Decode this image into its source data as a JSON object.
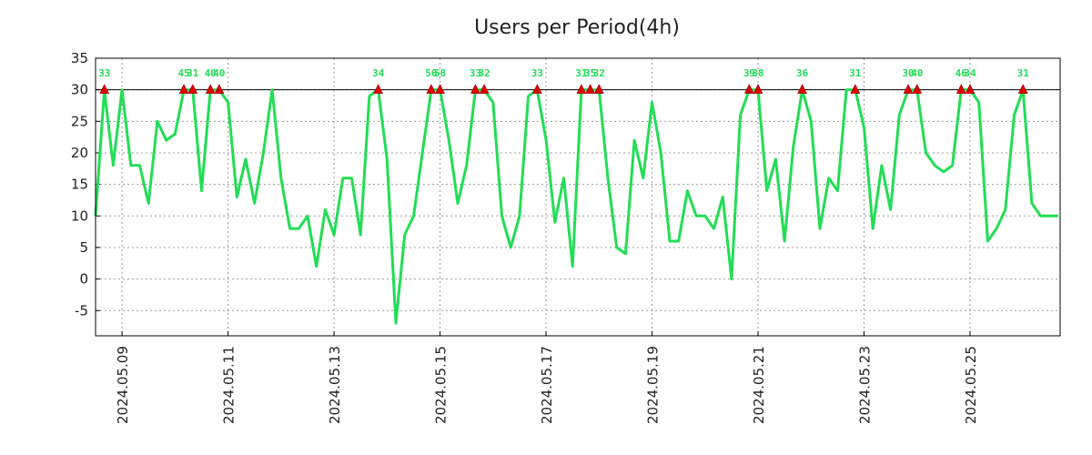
{
  "chart_data": {
    "type": "line",
    "title": "Users per Period(4h)",
    "xlabel": "",
    "ylabel": "",
    "ylim": [
      -9,
      35
    ],
    "yticks": [
      -5,
      0,
      5,
      10,
      15,
      20,
      25,
      30,
      35
    ],
    "x_start": "2024.05.08 12:00",
    "x_step_hours": 4,
    "xlim_days": [
      0,
      18.2
    ],
    "xtick_labels": [
      "2024.05.09",
      "2024.05.11",
      "2024.05.13",
      "2024.05.15",
      "2024.05.17",
      "2024.05.19",
      "2024.05.21",
      "2024.05.23",
      "2024.05.25"
    ],
    "xtick_days": [
      0.5,
      2.5,
      4.5,
      6.5,
      8.5,
      10.5,
      12.5,
      14.5,
      16.5
    ],
    "threshold": 30,
    "grid": true,
    "series": [
      {
        "name": "users",
        "color": "#22dd55",
        "values": [
          10,
          30,
          18,
          30,
          18,
          18,
          12,
          25,
          22,
          23,
          30,
          30,
          14,
          30,
          30,
          28,
          13,
          19,
          12,
          20,
          30,
          16,
          8,
          8,
          10,
          2,
          11,
          7,
          16,
          16,
          7,
          29,
          30,
          19,
          -7,
          7,
          10,
          20,
          30,
          30,
          22,
          12,
          18,
          30,
          30,
          28,
          10,
          5,
          10,
          29,
          30,
          22,
          9,
          16,
          2,
          30,
          30,
          30,
          16,
          5,
          4,
          22,
          16,
          28,
          20,
          6,
          6,
          14,
          10,
          10,
          8,
          13,
          0,
          26,
          30,
          30,
          14,
          19,
          6,
          21,
          30,
          25,
          8,
          16,
          14,
          30,
          30,
          24,
          8,
          18,
          11,
          26,
          30,
          30,
          20,
          18,
          17,
          18,
          30,
          30,
          28,
          6,
          8,
          11,
          26,
          30,
          12,
          10,
          10,
          10
        ]
      }
    ],
    "peaks": [
      {
        "index": 1,
        "label": "33"
      },
      {
        "index": 10,
        "label": "45"
      },
      {
        "index": 11,
        "label": "31"
      },
      {
        "index": 13,
        "label": "40"
      },
      {
        "index": 14,
        "label": "40"
      },
      {
        "index": 32,
        "label": "34"
      },
      {
        "index": 38,
        "label": "56"
      },
      {
        "index": 39,
        "label": "58"
      },
      {
        "index": 43,
        "label": "33"
      },
      {
        "index": 44,
        "label": "32"
      },
      {
        "index": 50,
        "label": "33"
      },
      {
        "index": 55,
        "label": "31"
      },
      {
        "index": 56,
        "label": "35"
      },
      {
        "index": 57,
        "label": "32"
      },
      {
        "index": 74,
        "label": "39"
      },
      {
        "index": 75,
        "label": "38"
      },
      {
        "index": 80,
        "label": "36"
      },
      {
        "index": 86,
        "label": "31"
      },
      {
        "index": 92,
        "label": "30"
      },
      {
        "index": 93,
        "label": "40"
      },
      {
        "index": 98,
        "label": "46"
      },
      {
        "index": 99,
        "label": "34"
      },
      {
        "index": 105,
        "label": "31"
      }
    ],
    "peak_marker_color": "#dd0000",
    "peak_label_color": "#22dd55"
  }
}
